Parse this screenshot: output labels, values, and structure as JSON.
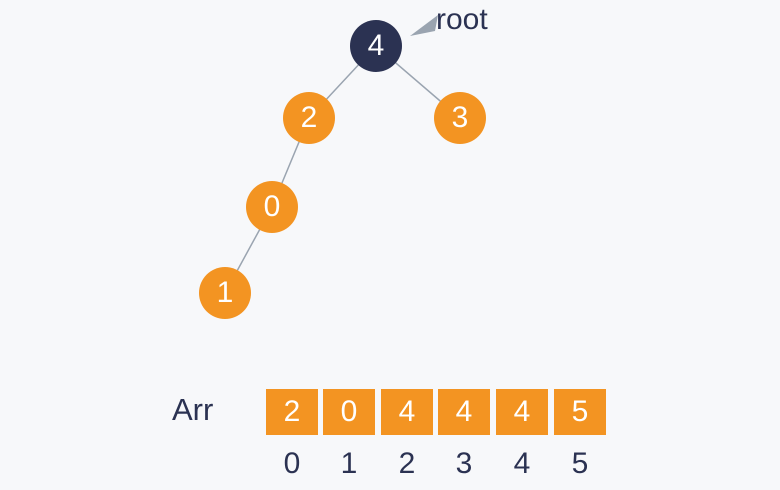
{
  "colors": {
    "node": "#f39422",
    "root_node": "#2b3252",
    "edge": "#9aa4b0",
    "pointer": "#9aa4b0",
    "text_dark": "#2b3252",
    "cell": "#f39422"
  },
  "tree": {
    "root_label": "root",
    "nodes": [
      {
        "id": "n4",
        "value": "4",
        "is_root": true
      },
      {
        "id": "n2",
        "value": "2",
        "is_root": false
      },
      {
        "id": "n3",
        "value": "3",
        "is_root": false
      },
      {
        "id": "n0",
        "value": "0",
        "is_root": false
      },
      {
        "id": "n1",
        "value": "1",
        "is_root": false
      }
    ],
    "edges": [
      {
        "from": "n4",
        "to": "n2"
      },
      {
        "from": "n4",
        "to": "n3"
      },
      {
        "from": "n2",
        "to": "n0"
      },
      {
        "from": "n0",
        "to": "n1"
      }
    ]
  },
  "array": {
    "name": "Arr",
    "values": [
      "2",
      "0",
      "4",
      "4",
      "4",
      "5"
    ],
    "indices": [
      "0",
      "1",
      "2",
      "3",
      "4",
      "5"
    ]
  }
}
